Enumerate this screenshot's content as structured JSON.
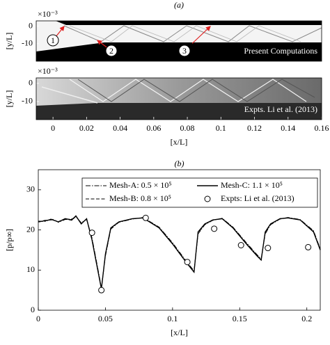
{
  "chart_data": [
    {
      "type": "image",
      "panel_label": "(a)",
      "y_multiplier": "×10⁻³",
      "ylabel": "[y/L]",
      "annotation": "Present Computations",
      "markers": [
        "1",
        "2",
        "3"
      ],
      "xlim": [
        -0.01,
        0.16
      ],
      "ylim": [
        -20,
        3
      ],
      "yticks": [
        0,
        -10
      ]
    },
    {
      "type": "image",
      "y_multiplier": "×10⁻³",
      "ylabel": "[y/L]",
      "annotation": "Expts. Li et al. (2013)",
      "xlabel": "[x/L]",
      "xlim": [
        -0.01,
        0.16
      ],
      "ylim": [
        -20,
        3
      ],
      "xticks": [
        0,
        0.02,
        0.04,
        0.06,
        0.08,
        0.1,
        0.12,
        0.14,
        0.16
      ],
      "yticks": [
        0,
        -10
      ]
    },
    {
      "type": "line",
      "panel_label": "(b)",
      "xlabel": "[x/L]",
      "ylabel": "[p/p∞]",
      "x": [
        0,
        0.005,
        0.01,
        0.015,
        0.02,
        0.025,
        0.028,
        0.032,
        0.036,
        0.04,
        0.044,
        0.047,
        0.05,
        0.054,
        0.06,
        0.07,
        0.078,
        0.09,
        0.1,
        0.11,
        0.116,
        0.119,
        0.124,
        0.13,
        0.137,
        0.145,
        0.155,
        0.163,
        0.166,
        0.169,
        0.173,
        0.18,
        0.186,
        0.195,
        0.205,
        0.21
      ],
      "series": [
        {
          "name": "Mesh-A: 0.5 × 10⁵",
          "color": "#000000",
          "linestyle": "-.",
          "values": [
            22.2,
            22.1,
            22.8,
            21.9,
            22.6,
            22.7,
            23.3,
            21.8,
            22.6,
            18.0,
            11.0,
            5.6,
            13.5,
            20.2,
            21.9,
            22.7,
            23.1,
            20.7,
            16.8,
            12.3,
            9.8,
            19.0,
            21.3,
            22.4,
            22.9,
            20.7,
            16.8,
            13.8,
            12.8,
            19.0,
            21.3,
            22.7,
            23.1,
            22.6,
            19.8,
            15.3
          ]
        },
        {
          "name": "Mesh-B: 0.8 × 10⁵",
          "color": "#000000",
          "linestyle": "--",
          "values": [
            22.0,
            22.4,
            22.5,
            22.1,
            22.7,
            22.4,
            23.4,
            21.6,
            22.7,
            17.7,
            10.7,
            5.4,
            13.8,
            20.4,
            22.0,
            22.8,
            23.0,
            20.6,
            16.6,
            12.1,
            9.6,
            19.3,
            21.4,
            22.5,
            22.8,
            20.6,
            16.6,
            13.6,
            12.6,
            19.3,
            21.4,
            22.8,
            23.0,
            22.5,
            19.6,
            15.1
          ]
        },
        {
          "name": "Mesh-C: 1.1 × 10⁵",
          "color": "#000000",
          "linestyle": "-",
          "values": [
            22,
            22.3,
            22.6,
            22,
            22.8,
            22.5,
            23.5,
            21.5,
            22.8,
            17.5,
            10.5,
            5.3,
            14,
            20.5,
            22,
            22.8,
            23,
            20.5,
            16.5,
            12,
            9.5,
            19.5,
            21.5,
            22.5,
            22.8,
            20.5,
            16.5,
            13.5,
            12.5,
            19.5,
            21.5,
            22.8,
            23,
            22.5,
            19.5,
            15
          ]
        },
        {
          "name": "Expts: Li et al. (2013)",
          "color": "#000000",
          "type": "scatter",
          "marker": "o",
          "x": [
            0.04,
            0.047,
            0.08,
            0.111,
            0.131,
            0.151,
            0.171,
            0.201
          ],
          "values": [
            19.3,
            5,
            23,
            12,
            20.3,
            16.2,
            15.5,
            15.7
          ]
        }
      ],
      "legend": "upper center",
      "grid": false,
      "xlim": [
        0,
        0.21
      ],
      "ylim": [
        0,
        35
      ],
      "xticks": [
        0,
        0.05,
        0.1,
        0.15,
        0.2
      ],
      "yticks": [
        0,
        10,
        20,
        30
      ]
    }
  ]
}
